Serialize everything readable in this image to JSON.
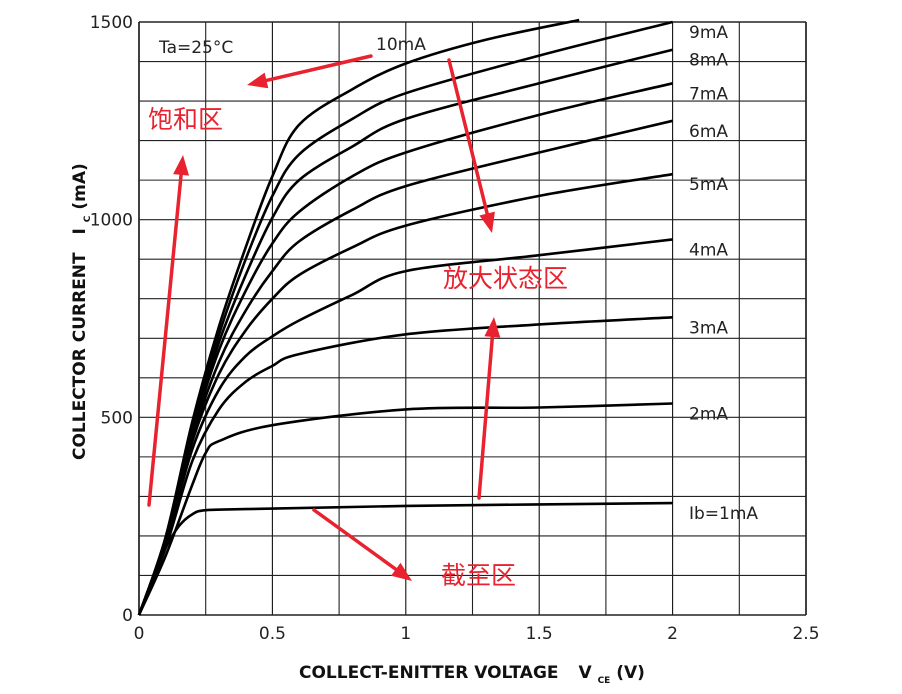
{
  "chart_data": {
    "type": "line",
    "xlabel": "COLLECT-ENITTER VOLTAGE",
    "xlabel_symbol": "V",
    "xlabel_sub": "CE",
    "xlabel_unit": "(V)",
    "ylabel": "COLLECTOR CURRENT",
    "ylabel_symbol": "I",
    "ylabel_sub": "C",
    "ylabel_unit": "(mA)",
    "xlim": [
      0,
      2.5
    ],
    "ylim": [
      0,
      1500
    ],
    "x_ticks": [
      "0",
      "0.5",
      "1",
      "1.5",
      "2",
      "2.5"
    ],
    "y_ticks": [
      "0",
      "500",
      "1000",
      "1500"
    ],
    "condition": "Ta=25°C",
    "grid": true,
    "series": [
      {
        "name": "Ib=1mA",
        "x": [
          0,
          0.05,
          0.1,
          0.15,
          0.2,
          0.25,
          0.4,
          1,
          2
        ],
        "y": [
          0,
          90,
          170,
          225,
          255,
          265,
          268,
          276,
          283
        ]
      },
      {
        "name": "2mA",
        "x": [
          0,
          0.1,
          0.2,
          0.25,
          0.3,
          0.5,
          1,
          1.5,
          2
        ],
        "y": [
          0,
          150,
          330,
          410,
          440,
          480,
          520,
          525,
          535
        ]
      },
      {
        "name": "3mA",
        "x": [
          0,
          0.1,
          0.2,
          0.3,
          0.4,
          0.5,
          0.6,
          1,
          1.5,
          2
        ],
        "y": [
          0,
          170,
          390,
          520,
          590,
          630,
          660,
          710,
          735,
          753
        ]
      },
      {
        "name": "4mA",
        "x": [
          0,
          0.1,
          0.2,
          0.3,
          0.4,
          0.5,
          0.6,
          0.8,
          1,
          1.5,
          2
        ],
        "y": [
          0,
          180,
          420,
          570,
          655,
          705,
          745,
          810,
          870,
          910,
          950
        ]
      },
      {
        "name": "5mA",
        "x": [
          0,
          0.1,
          0.2,
          0.3,
          0.4,
          0.5,
          0.6,
          0.8,
          1,
          1.5,
          2
        ],
        "y": [
          0,
          185,
          440,
          610,
          720,
          800,
          860,
          930,
          985,
          1060,
          1115
        ]
      },
      {
        "name": "6mA",
        "x": [
          0,
          0.1,
          0.2,
          0.3,
          0.4,
          0.5,
          0.6,
          0.8,
          1,
          1.5,
          2
        ],
        "y": [
          0,
          190,
          450,
          640,
          770,
          870,
          945,
          1025,
          1085,
          1170,
          1250
        ]
      },
      {
        "name": "7mA",
        "x": [
          0,
          0.1,
          0.2,
          0.3,
          0.4,
          0.5,
          0.6,
          0.8,
          1,
          1.5,
          2
        ],
        "y": [
          0,
          192,
          460,
          670,
          820,
          940,
          1020,
          1110,
          1170,
          1265,
          1345
        ]
      },
      {
        "name": "8mA",
        "x": [
          0,
          0.1,
          0.2,
          0.3,
          0.4,
          0.5,
          0.6,
          0.8,
          1,
          1.5,
          2
        ],
        "y": [
          0,
          194,
          470,
          690,
          860,
          1005,
          1100,
          1185,
          1255,
          1345,
          1430
        ]
      },
      {
        "name": "9mA",
        "x": [
          0,
          0.1,
          0.2,
          0.3,
          0.4,
          0.5,
          0.6,
          0.8,
          1,
          1.5,
          2
        ],
        "y": [
          0,
          196,
          480,
          710,
          900,
          1060,
          1165,
          1255,
          1320,
          1415,
          1500
        ]
      },
      {
        "name": "10mA",
        "x": [
          0,
          0.1,
          0.2,
          0.3,
          0.4,
          0.5,
          0.6,
          0.8,
          1,
          1.3,
          1.65
        ],
        "y": [
          0,
          198,
          490,
          730,
          930,
          1110,
          1240,
          1330,
          1395,
          1455,
          1505
        ]
      }
    ],
    "annotations": [
      {
        "text": "饱和区",
        "x": 0.06,
        "y": 1260
      },
      {
        "text": "放大状态区",
        "x": 1.15,
        "y": 845
      },
      {
        "text": "截至区",
        "x": 1.15,
        "y": 100
      }
    ]
  }
}
